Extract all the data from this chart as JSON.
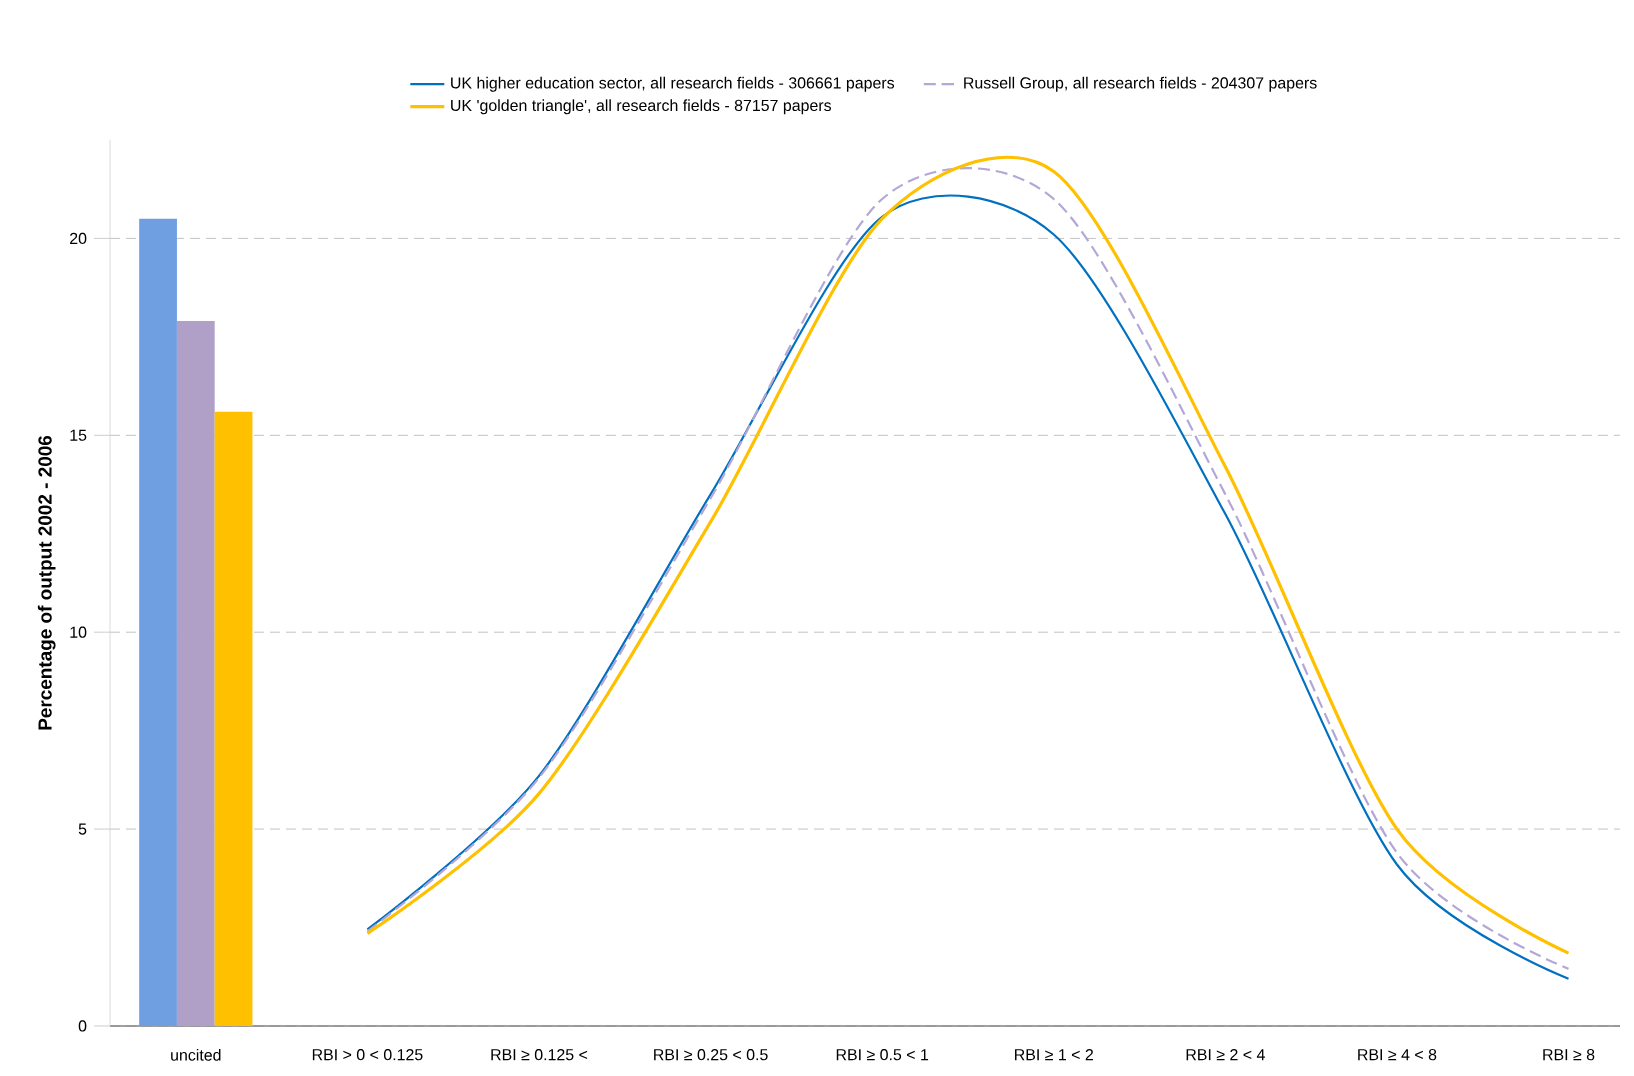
{
  "chart_data": {
    "type": "line",
    "ylabel": "Percentage of output  2002 - 2006",
    "categories": [
      "uncited",
      "RBI > 0 < 0.125",
      "RBI ≥ 0.125 <",
      "RBI ≥ 0.25 < 0.5",
      "RBI ≥ 0.5 < 1",
      "RBI ≥ 1 < 2",
      "RBI ≥ 2 < 4",
      "RBI ≥ 4 < 8",
      "RBI ≥ 8"
    ],
    "series": [
      {
        "type": "bar",
        "color": "#6f9fe0",
        "values": [
          20.5,
          null,
          null,
          null,
          null,
          null,
          null,
          null,
          null
        ]
      },
      {
        "type": "bar",
        "color": "#b0a0c8",
        "values": [
          17.9,
          null,
          null,
          null,
          null,
          null,
          null,
          null,
          null
        ]
      },
      {
        "type": "bar",
        "color": "#ffc000",
        "values": [
          15.6,
          null,
          null,
          null,
          null,
          null,
          null,
          null,
          null
        ]
      },
      {
        "name": "UK higher education sector, all research fields  - 306661 papers",
        "color": "#0070c0",
        "line_style": "solid",
        "values": [
          null,
          2.45,
          6.35,
          13.5,
          20.55,
          20.1,
          13.0,
          4.1,
          1.2
        ]
      },
      {
        "name": "Russell Group, all research fields  - 204307 papers",
        "color": "#b4a7d6",
        "line_style": "dashed",
        "values": [
          null,
          2.4,
          6.3,
          13.4,
          21.0,
          21.0,
          13.5,
          4.4,
          1.45
        ]
      },
      {
        "name": "UK 'golden triangle', all research fields  - 87157 papers",
        "color": "#ffc000",
        "line_style": "solid",
        "values": [
          null,
          2.35,
          5.9,
          12.8,
          20.5,
          21.7,
          14.2,
          5.0,
          1.85
        ]
      }
    ],
    "ylim": [
      0,
      22.5
    ],
    "yticks": [
      0,
      5,
      10,
      15,
      20
    ],
    "grid": "y",
    "legend": "top"
  }
}
